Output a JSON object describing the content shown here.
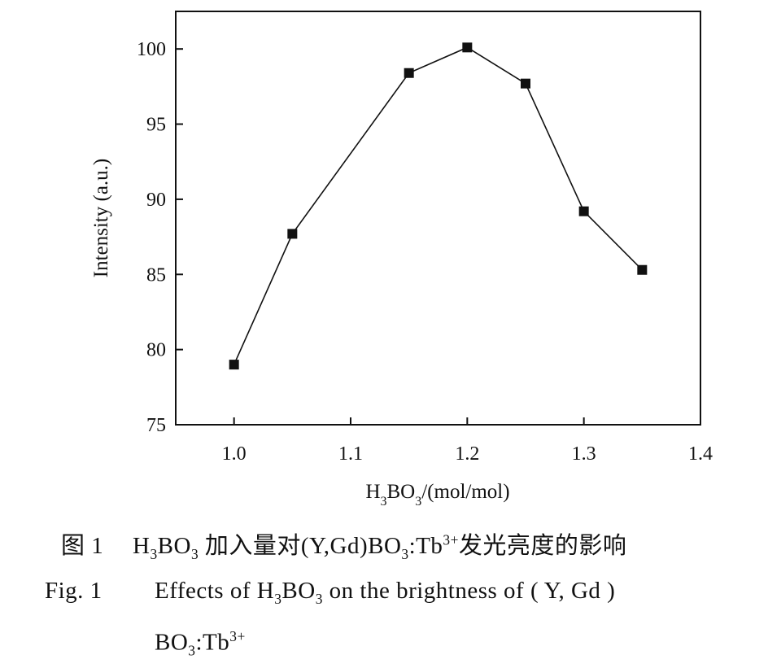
{
  "chart_data": {
    "type": "line",
    "x": [
      1.0,
      1.05,
      1.15,
      1.2,
      1.25,
      1.3,
      1.35
    ],
    "series": [
      {
        "values": [
          79.0,
          87.7,
          98.4,
          100.1,
          97.7,
          89.2,
          85.3
        ],
        "marker": "square",
        "color": "#111111"
      }
    ],
    "xlabel_main": "H",
    "xlabel_sub1": "3",
    "xlabel_mid": "BO",
    "xlabel_sub2": "3",
    "xlabel_tail": "/(mol/mol)",
    "ylabel": "Intensity (a.u.)",
    "xlim": [
      0.95,
      1.4
    ],
    "ylim": [
      75,
      102.5
    ],
    "xticks": [
      "1.0",
      "1.1",
      "1.2",
      "1.3",
      "1.4"
    ],
    "xtick_values": [
      1.0,
      1.1,
      1.2,
      1.3,
      1.4
    ],
    "yticks": [
      "75",
      "80",
      "85",
      "90",
      "95",
      "100"
    ],
    "ytick_values": [
      75,
      80,
      85,
      90,
      95,
      100
    ],
    "grid": false
  },
  "caption": {
    "zh_number": "图 1",
    "zh_text_a": "H",
    "zh_sub1": "3",
    "zh_text_b": "BO",
    "zh_sub2": "3",
    "zh_text_c": " 加入量对(Y,Gd)BO",
    "zh_sub3": "3",
    "zh_text_d": ":Tb",
    "zh_sup": "3+",
    "zh_text_e": "发光亮度的影响",
    "en_number": "Fig. 1",
    "en_text_a": "Effects  of  H",
    "en_sub1": "3",
    "en_text_b": "BO",
    "en_sub2": "3",
    "en_text_c": "  on  the  brightness  of  ( Y, Gd )",
    "en_line2_a": "BO",
    "en_line2_sub": "3",
    "en_line2_b": ":Tb",
    "en_line2_sup": "3+"
  }
}
